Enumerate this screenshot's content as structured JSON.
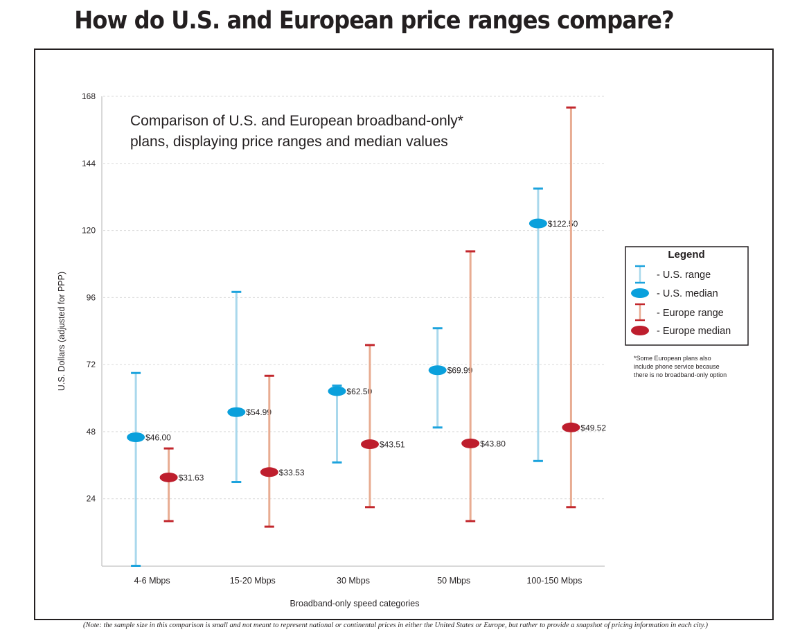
{
  "header": {
    "title": "How do U.S. and European price ranges compare?"
  },
  "footnote": "(Note: the sample size in this comparison is small and not meant to represent national or continental prices in either the United States or Europe, but rather to provide a snapshot of pricing information in each city.)",
  "colors": {
    "us_range_line": "#a9d8ec",
    "us_range_cap": "#1ca3dd",
    "us_median": "#0aa0dc",
    "europe_range_line": "#e8ac92",
    "europe_range_cap": "#c2272d",
    "europe_median": "#be1e2d",
    "gridline": "#d9d9d9",
    "axis": "#b3b3b3",
    "text": "#231f20"
  },
  "chart_data": {
    "type": "range-median",
    "title": "How do U.S. and European price ranges compare?",
    "subtitle": [
      "Comparison of U.S. and European broadband-only*",
      "plans, displaying price ranges and median values"
    ],
    "xlabel": "Broadband-only speed categories",
    "ylabel": "U.S. Dollars (adjusted for PPP)",
    "ylim": [
      0,
      168
    ],
    "yticks": [
      24,
      48,
      72,
      96,
      120,
      144,
      168
    ],
    "grid": true,
    "categories": [
      "4-6 Mbps",
      "15-20 Mbps",
      "30 Mbps",
      "50 Mbps",
      "100-150 Mbps"
    ],
    "series": [
      {
        "name": "U.S.",
        "median": [
          46.0,
          54.99,
          62.5,
          69.99,
          122.5
        ],
        "median_labels": [
          "$46.00",
          "$54.99",
          "$62.50",
          "$69.99",
          "$122.50"
        ],
        "range_min": [
          0,
          30,
          37,
          49.5,
          37.5
        ],
        "range_max": [
          69,
          98,
          64.5,
          85,
          135
        ]
      },
      {
        "name": "Europe",
        "median": [
          31.63,
          33.53,
          43.51,
          43.8,
          49.52
        ],
        "median_labels": [
          "$31.63",
          "$33.53",
          "$43.51",
          "$43.80",
          "$49.52"
        ],
        "range_min": [
          16,
          14,
          21,
          16,
          21
        ],
        "range_max": [
          42,
          68,
          79,
          112.5,
          164
        ]
      }
    ],
    "legend": {
      "position": "right",
      "title": "Legend",
      "items": [
        "- U.S. range",
        "- U.S. median",
        "- Europe range",
        "- Europe median"
      ],
      "note": [
        "*Some European plans also",
        "include phone service because",
        "there is no broadband-only option"
      ]
    }
  }
}
